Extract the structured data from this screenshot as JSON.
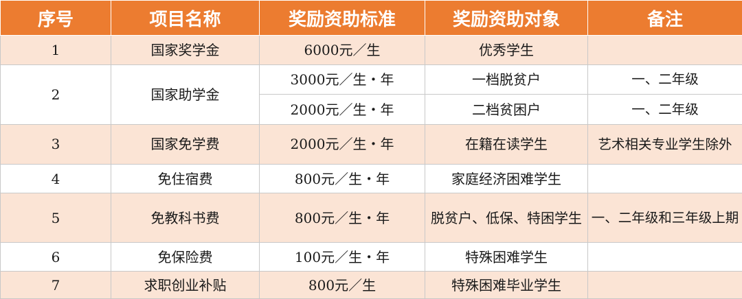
{
  "table": {
    "headers": [
      "序号",
      "项目名称",
      "奖励资助标准",
      "奖励资助对象",
      "备注"
    ],
    "rows": [
      {
        "no": "1",
        "name": "国家奖学金",
        "standard": "6000元／生",
        "target": "优秀学生",
        "note": ""
      },
      {
        "no": "2",
        "name": "国家助学金",
        "sub": [
          {
            "standard": "3000元／生・年",
            "target": "一档脱贫户",
            "note": "一、二年级"
          },
          {
            "standard": "2000元／生・年",
            "target": "二档贫困户",
            "note": "一、二年级"
          }
        ]
      },
      {
        "no": "3",
        "name": "国家免学费",
        "standard": "2000元／生・年",
        "target": "在籍在读学生",
        "note": "艺术相关专业学生除外"
      },
      {
        "no": "4",
        "name": "免住宿费",
        "standard": "800元／生・年",
        "target": "家庭经济困难学生",
        "note": ""
      },
      {
        "no": "5",
        "name": "免教科书费",
        "standard": "800元／生・年",
        "target": "脱贫户、低保、特困学生",
        "note": "一、二年级和三年级上期"
      },
      {
        "no": "6",
        "name": "免保险费",
        "standard": "100元／生・年",
        "target": "特殊困难学生",
        "note": ""
      },
      {
        "no": "7",
        "name": "求职创业补贴",
        "standard": "800元／生",
        "target": "特殊困难毕业学生",
        "note": ""
      }
    ]
  },
  "colors": {
    "header_bg": "#ec7c30",
    "header_text": "#ffffff",
    "band_bg": "#fbe4d5",
    "plain_bg": "#ffffff"
  }
}
